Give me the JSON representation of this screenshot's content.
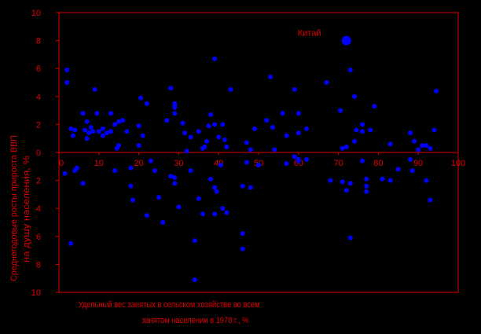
{
  "chart_data": {
    "type": "scatter",
    "xlabel_lines": [
      "Удельный вес занятых в сельском хозяйстве во всем",
      "занятом населении в 1978 г., %"
    ],
    "ylabel_lines": [
      "Среднегодовые росты прироста ВВП",
      "на душу населения, %"
    ],
    "xlim": [
      0,
      100
    ],
    "ylim": [
      -10,
      10
    ],
    "x_ticks": [
      "0",
      "10",
      "20",
      "30",
      "40",
      "50",
      "60",
      "70",
      "80",
      "90",
      "100"
    ],
    "y_ticks": [
      "10",
      "8",
      "6",
      "4",
      "2",
      "0",
      "2",
      "4",
      "6",
      "8",
      "10"
    ],
    "axis_color": "#e00000",
    "point_color": "#0000ff",
    "annotation": {
      "label": "Китай",
      "x": 72,
      "y": 8
    },
    "points": [
      [
        2,
        5.9
      ],
      [
        2,
        5
      ],
      [
        3,
        1.7
      ],
      [
        3.5,
        1.2
      ],
      [
        4,
        1.6
      ],
      [
        6,
        2.8
      ],
      [
        6.5,
        1.6
      ],
      [
        7,
        2.2
      ],
      [
        7,
        1
      ],
      [
        7.5,
        1.4
      ],
      [
        8,
        1.8
      ],
      [
        8.5,
        1.5
      ],
      [
        9,
        4.5
      ],
      [
        9.5,
        2.8
      ],
      [
        10,
        1.5
      ],
      [
        11,
        1.7
      ],
      [
        11,
        1.2
      ],
      [
        12,
        1.4
      ],
      [
        13,
        2.8
      ],
      [
        13,
        1.5
      ],
      [
        14,
        2
      ],
      [
        14.5,
        0.3
      ],
      [
        15,
        0.5
      ],
      [
        15,
        2.2
      ],
      [
        16,
        2.3
      ],
      [
        17,
        1.5
      ],
      [
        20,
        1.9
      ],
      [
        20,
        0.5
      ],
      [
        20.5,
        3.9
      ],
      [
        21,
        1.2
      ],
      [
        22,
        3.5
      ],
      [
        27,
        2.3
      ],
      [
        28,
        4.6
      ],
      [
        29,
        3.5
      ],
      [
        29,
        3.3
      ],
      [
        29,
        3.2
      ],
      [
        29,
        2.8
      ],
      [
        31,
        2.1
      ],
      [
        31.5,
        1.4
      ],
      [
        32,
        0.1
      ],
      [
        33,
        1.1
      ],
      [
        35,
        1.5
      ],
      [
        36,
        0.3
      ],
      [
        36.5,
        0.4
      ],
      [
        37,
        0.8
      ],
      [
        37.5,
        1.9
      ],
      [
        38,
        2.7
      ],
      [
        39,
        2
      ],
      [
        39,
        6.7
      ],
      [
        40,
        1.1
      ],
      [
        41,
        2
      ],
      [
        41.5,
        0.9
      ],
      [
        42,
        0.4
      ],
      [
        43,
        4.5
      ],
      [
        47,
        0.7
      ],
      [
        48,
        0.2
      ],
      [
        49,
        1.7
      ],
      [
        52,
        2.3
      ],
      [
        53,
        5.4
      ],
      [
        53.5,
        1.8
      ],
      [
        54,
        0.2
      ],
      [
        56,
        2.8
      ],
      [
        57,
        1.2
      ],
      [
        59,
        4.5
      ],
      [
        60,
        2.8
      ],
      [
        60,
        1.4
      ],
      [
        62,
        1.7
      ],
      [
        67,
        5
      ],
      [
        70.5,
        3
      ],
      [
        71,
        0.3
      ],
      [
        72,
        0.4
      ],
      [
        73,
        5.9
      ],
      [
        74,
        0.8
      ],
      [
        74,
        4
      ],
      [
        74.5,
        1.6
      ],
      [
        76,
        2
      ],
      [
        76,
        1.5
      ],
      [
        78,
        1.6
      ],
      [
        79,
        3.3
      ],
      [
        83,
        0.6
      ],
      [
        88,
        1.4
      ],
      [
        89,
        0.8
      ],
      [
        90,
        0.2
      ],
      [
        91,
        0.5
      ],
      [
        92,
        0.5
      ],
      [
        93,
        0.3
      ],
      [
        94,
        1.6
      ],
      [
        94.5,
        4.4
      ],
      [
        1.5,
        -1.5
      ],
      [
        3,
        -6.5
      ],
      [
        4,
        -1.3
      ],
      [
        4.5,
        -1.1
      ],
      [
        6,
        -2.2
      ],
      [
        14,
        -1.3
      ],
      [
        18,
        -1.1
      ],
      [
        18,
        -2.4
      ],
      [
        18.5,
        -3.4
      ],
      [
        22,
        -4.5
      ],
      [
        23,
        -0.6
      ],
      [
        24,
        -1.3
      ],
      [
        25,
        -3.2
      ],
      [
        26,
        -5
      ],
      [
        28,
        -1.7
      ],
      [
        29,
        -1.8
      ],
      [
        29,
        -2.2
      ],
      [
        30,
        -3.9
      ],
      [
        33,
        -1.3
      ],
      [
        34,
        -6.3
      ],
      [
        35,
        -3.3
      ],
      [
        36,
        -4.4
      ],
      [
        38,
        -1.9
      ],
      [
        39,
        -2.5
      ],
      [
        39,
        -4.4
      ],
      [
        39.5,
        -2.8
      ],
      [
        40.5,
        -0.9
      ],
      [
        41,
        -4
      ],
      [
        42,
        -4.3
      ],
      [
        46,
        -2.4
      ],
      [
        46,
        -5.8
      ],
      [
        46,
        -6.9
      ],
      [
        47,
        -0.7
      ],
      [
        48,
        -2.5
      ],
      [
        50,
        -0.9
      ],
      [
        57,
        -0.8
      ],
      [
        59,
        -0.3
      ],
      [
        60,
        -0.6
      ],
      [
        60,
        -0.5
      ],
      [
        62,
        -0.5
      ],
      [
        68,
        -2
      ],
      [
        71,
        -2.1
      ],
      [
        72,
        -2.7
      ],
      [
        73,
        -2.2
      ],
      [
        73,
        -6.1
      ],
      [
        76,
        -0.6
      ],
      [
        77,
        -1.9
      ],
      [
        77,
        -2.4
      ],
      [
        77,
        -2.8
      ],
      [
        81,
        -1.9
      ],
      [
        83,
        -2
      ],
      [
        85,
        -1.2
      ],
      [
        88,
        -0.5
      ],
      [
        88.5,
        -1.3
      ],
      [
        92,
        -2
      ],
      [
        93,
        -3.4
      ],
      [
        34,
        -9.1
      ]
    ]
  }
}
